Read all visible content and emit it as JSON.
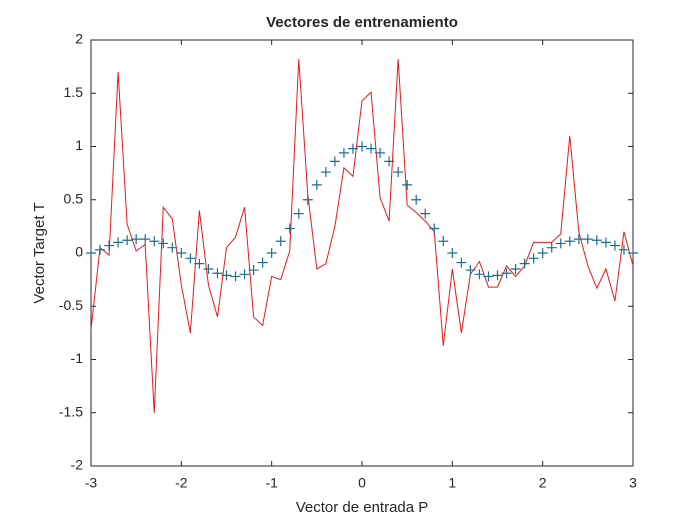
{
  "chart_data": {
    "type": "line",
    "title": "Vectores de entrenamiento",
    "xlabel": "Vector de entrada P",
    "ylabel": "Vector Target T",
    "x": [
      -3,
      -2.9,
      -2.8,
      -2.7,
      -2.6,
      -2.5,
      -2.4,
      -2.3,
      -2.2,
      -2.1,
      -2,
      -1.9,
      -1.8,
      -1.7,
      -1.6,
      -1.5,
      -1.4,
      -1.3,
      -1.2,
      -1.1,
      -1,
      -0.9,
      -0.8,
      -0.7,
      -0.6,
      -0.5,
      -0.4,
      -0.3,
      -0.2,
      -0.1,
      0,
      0.1,
      0.2,
      0.3,
      0.4,
      0.5,
      0.6,
      0.7,
      0.8,
      0.9,
      1,
      1.1,
      1.2,
      1.3,
      1.4,
      1.5,
      1.6,
      1.7,
      1.8,
      1.9,
      2,
      2.1,
      2.2,
      2.3,
      2.4,
      2.5,
      2.6,
      2.7,
      2.8,
      2.9,
      3
    ],
    "series": [
      {
        "color": "#e41a1c",
        "style": "line",
        "values": [
          -0.72,
          0.05,
          -0.02,
          1.7,
          0.27,
          0.02,
          0.08,
          -1.5,
          0.43,
          0.32,
          -0.3,
          -0.75,
          0.4,
          -0.3,
          -0.6,
          0.05,
          0.15,
          0.43,
          -0.6,
          -0.68,
          -0.22,
          -0.25,
          0.02,
          1.82,
          0.55,
          -0.15,
          -0.1,
          0.25,
          0.8,
          0.72,
          1.43,
          1.51,
          0.52,
          0.3,
          1.82,
          0.45,
          0.38,
          0.3,
          0.2,
          -0.87,
          -0.15,
          -0.75,
          -0.2,
          -0.08,
          -0.32,
          -0.32,
          -0.12,
          -0.22,
          -0.12,
          0.1,
          0.1,
          0.1,
          0.18,
          1.1,
          0.2,
          -0.12,
          -0.33,
          -0.15,
          -0.45,
          0.2,
          -0.12
        ]
      },
      {
        "color": "#1f6e8c",
        "style": "plus",
        "values": [
          0,
          0.03,
          0.07,
          0.1,
          0.12,
          0.13,
          0.13,
          0.11,
          0.09,
          0.05,
          0,
          -0.05,
          -0.1,
          -0.15,
          -0.19,
          -0.21,
          -0.22,
          -0.2,
          -0.16,
          -0.09,
          0,
          0.11,
          0.23,
          0.37,
          0.5,
          0.64,
          0.76,
          0.86,
          0.94,
          0.98,
          1,
          0.98,
          0.94,
          0.86,
          0.76,
          0.64,
          0.5,
          0.37,
          0.23,
          0.11,
          0,
          -0.09,
          -0.16,
          -0.2,
          -0.22,
          -0.21,
          -0.19,
          -0.15,
          -0.1,
          -0.05,
          0,
          0.05,
          0.09,
          0.11,
          0.13,
          0.13,
          0.12,
          0.1,
          0.07,
          0.03,
          0
        ]
      }
    ],
    "xlim": [
      -3,
      3
    ],
    "xticks": [
      -3,
      -2,
      -1,
      0,
      1,
      2,
      3
    ],
    "ylim": [
      -2,
      2
    ],
    "yticks": [
      -2,
      -1.5,
      -1,
      -0.5,
      0,
      0.5,
      1,
      1.5,
      2
    ],
    "grid": false
  }
}
